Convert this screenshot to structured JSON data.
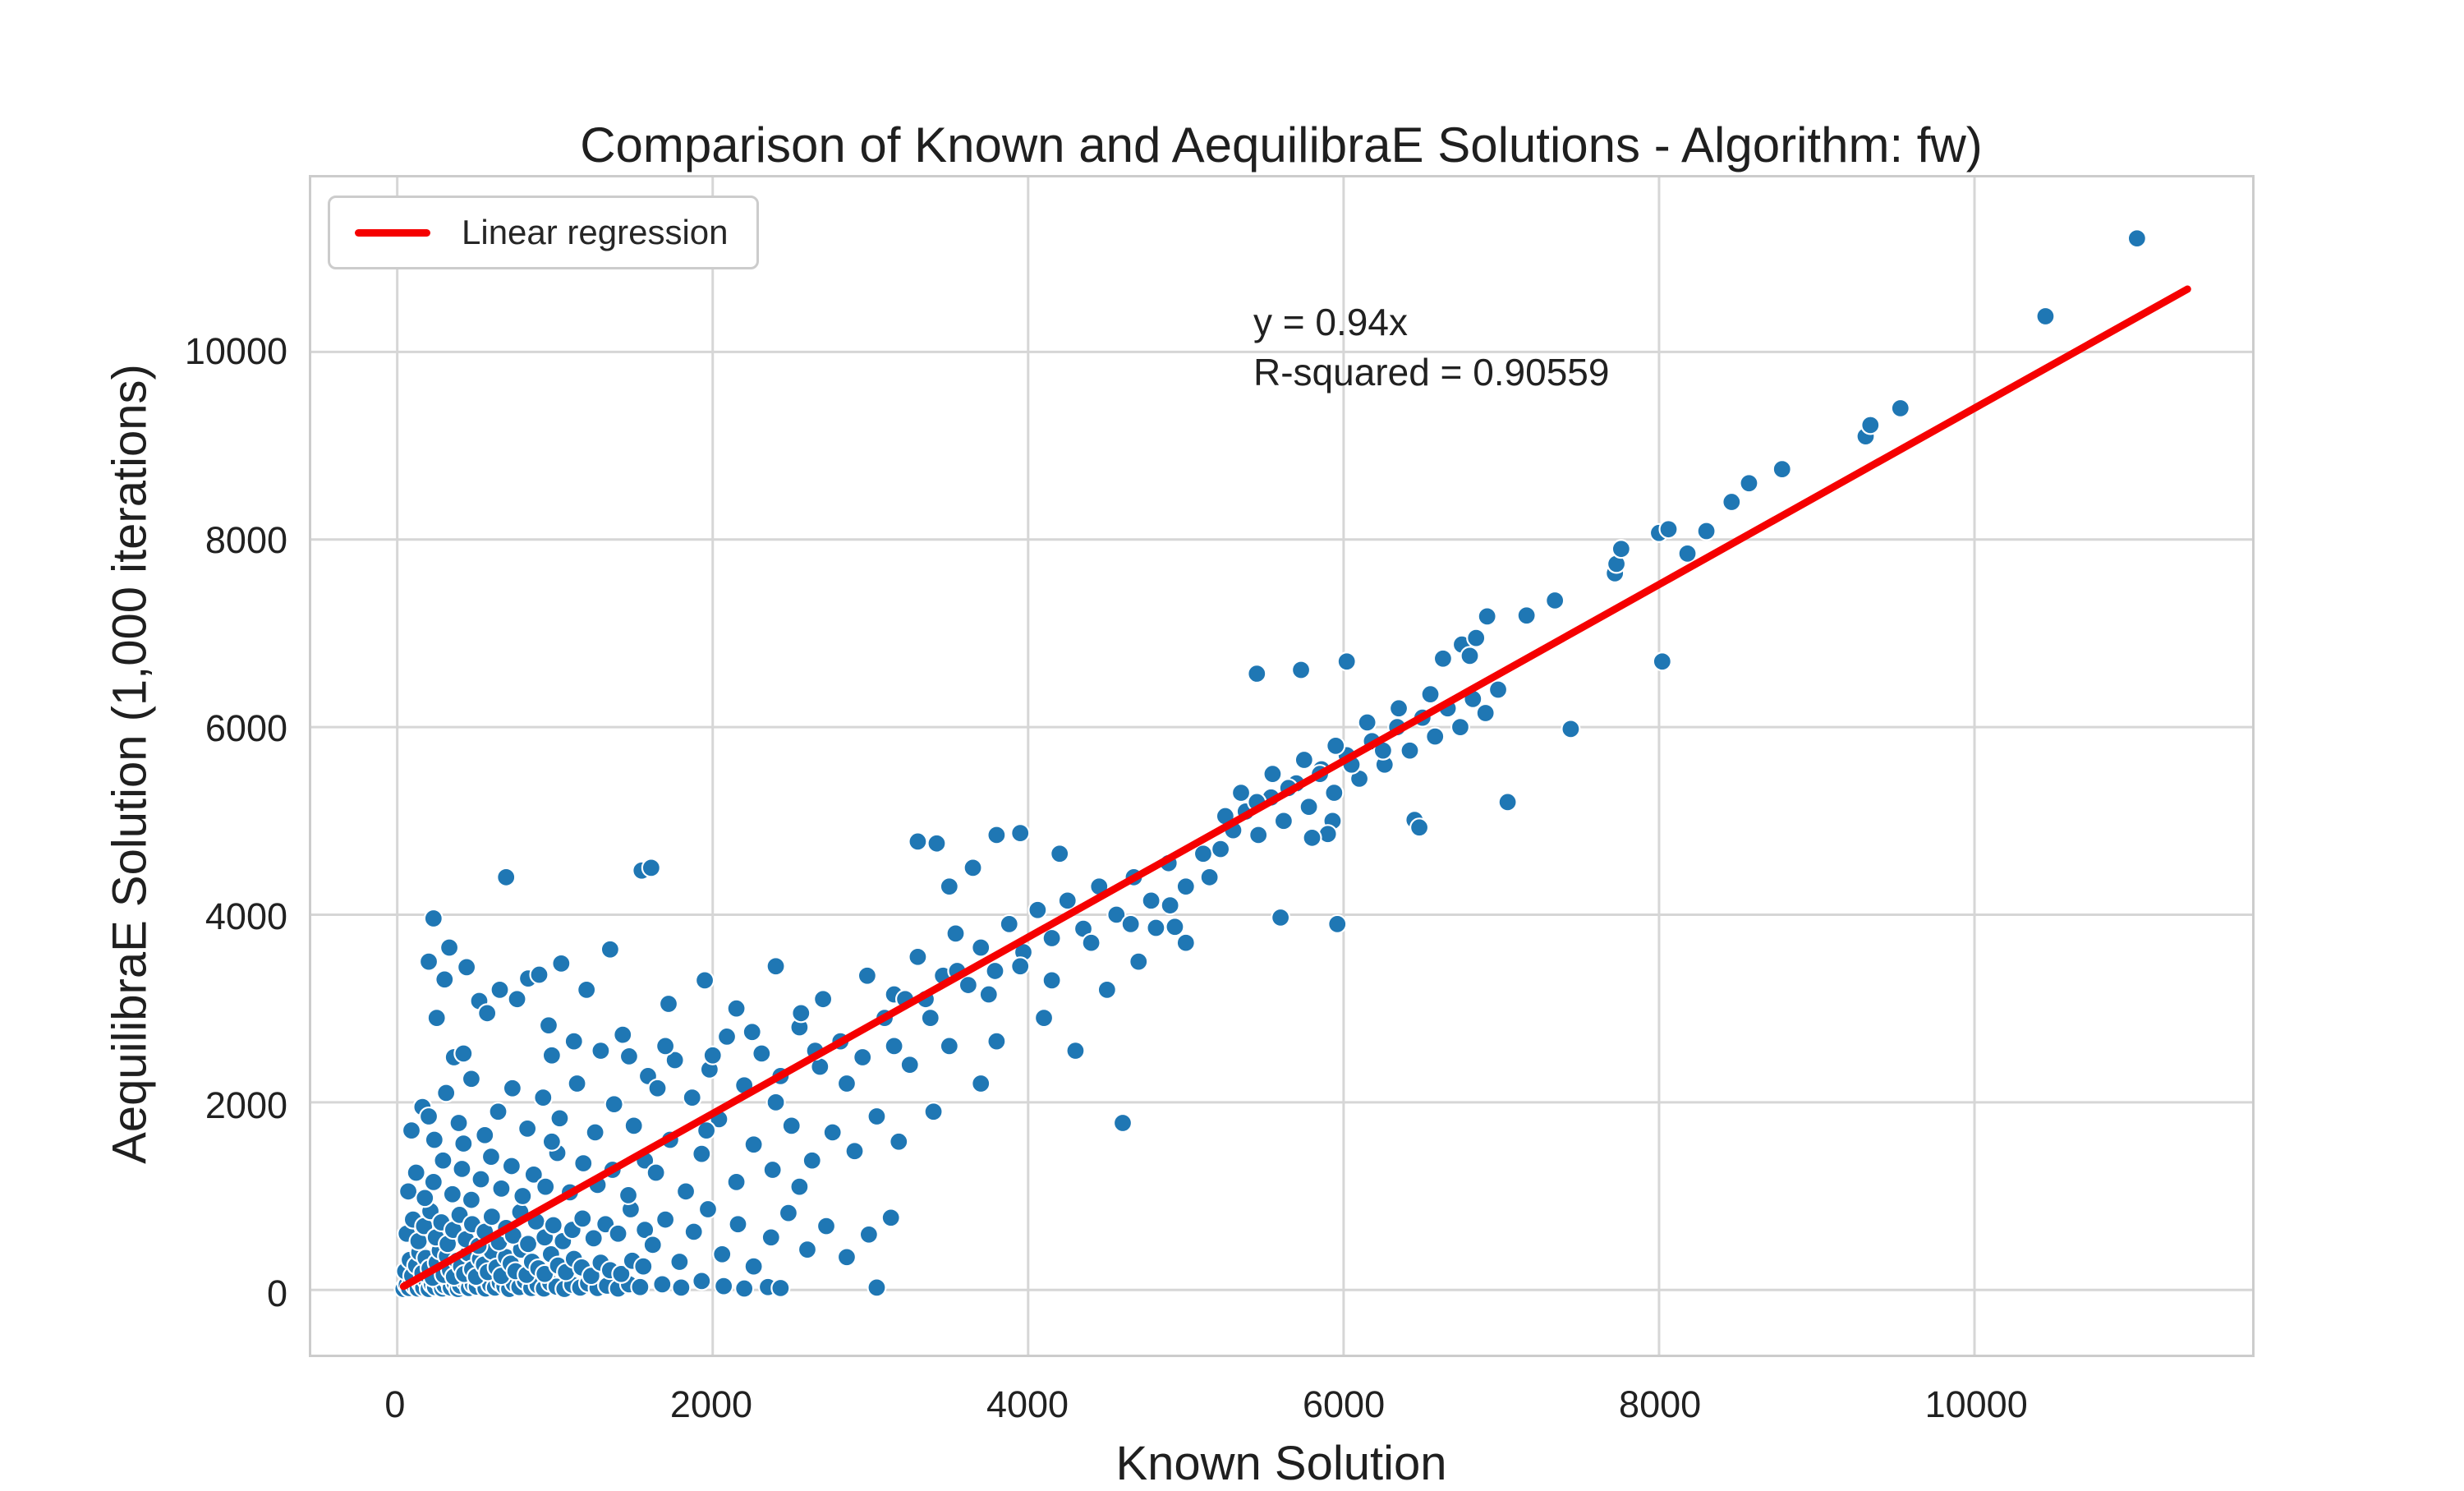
{
  "chart_data": {
    "type": "scatter",
    "title": "Comparison of Known and AequilibraE Solutions - Algorithm: fw)",
    "xlabel": "Known Solution",
    "ylabel": "AequilibraE Solution (1,000 iterations)",
    "xlim": [
      -545,
      11760
    ],
    "ylim": [
      -690,
      11860
    ],
    "x_ticks": [
      0,
      2000,
      4000,
      6000,
      8000,
      10000
    ],
    "y_ticks": [
      0,
      2000,
      4000,
      6000,
      8000,
      10000
    ],
    "grid": true,
    "grid_color": "#d6d6d6",
    "spine_color": "#cccccc",
    "point_color": "#1f77b4",
    "point_edge_color": "#ffffff",
    "regression_color": "#f50000",
    "legend": {
      "label": "Linear regression",
      "position": "upper left"
    },
    "annotation": {
      "line1": "y = 0.94x",
      "line2": "R-squared = 0.90559"
    },
    "regression": {
      "slope": 0.94,
      "intercept": 0,
      "x_start": 40,
      "x_end": 11350,
      "r_squared": 0.90559
    },
    "points": [
      [
        40,
        10
      ],
      [
        60,
        55
      ],
      [
        75,
        20
      ],
      [
        90,
        90
      ],
      [
        110,
        40
      ],
      [
        130,
        15
      ],
      [
        150,
        70
      ],
      [
        165,
        25
      ],
      [
        185,
        100
      ],
      [
        200,
        10
      ],
      [
        220,
        60
      ],
      [
        240,
        30
      ],
      [
        260,
        95
      ],
      [
        285,
        15
      ],
      [
        300,
        50
      ],
      [
        320,
        110
      ],
      [
        340,
        25
      ],
      [
        365,
        70
      ],
      [
        385,
        10
      ],
      [
        400,
        45
      ],
      [
        430,
        90
      ],
      [
        455,
        20
      ],
      [
        480,
        60
      ],
      [
        505,
        35
      ],
      [
        530,
        105
      ],
      [
        560,
        15
      ],
      [
        590,
        55
      ],
      [
        620,
        25
      ],
      [
        650,
        80
      ],
      [
        680,
        40
      ],
      [
        710,
        10
      ],
      [
        740,
        65
      ],
      [
        775,
        30
      ],
      [
        810,
        95
      ],
      [
        850,
        20
      ],
      [
        890,
        50
      ],
      [
        930,
        15
      ],
      [
        970,
        75
      ],
      [
        1010,
        35
      ],
      [
        1060,
        10
      ],
      [
        1110,
        55
      ],
      [
        1160,
        25
      ],
      [
        1210,
        70
      ],
      [
        1270,
        20
      ],
      [
        1330,
        45
      ],
      [
        1400,
        15
      ],
      [
        1470,
        60
      ],
      [
        1540,
        30
      ],
      [
        50,
        200
      ],
      [
        80,
        320
      ],
      [
        95,
        150
      ],
      [
        120,
        260
      ],
      [
        140,
        400
      ],
      [
        160,
        180
      ],
      [
        180,
        340
      ],
      [
        205,
        230
      ],
      [
        225,
        130
      ],
      [
        250,
        290
      ],
      [
        270,
        420
      ],
      [
        295,
        160
      ],
      [
        315,
        360
      ],
      [
        335,
        210
      ],
      [
        360,
        140
      ],
      [
        380,
        310
      ],
      [
        405,
        250
      ],
      [
        425,
        170
      ],
      [
        450,
        390
      ],
      [
        475,
        220
      ],
      [
        500,
        140
      ],
      [
        525,
        330
      ],
      [
        550,
        270
      ],
      [
        575,
        190
      ],
      [
        600,
        410
      ],
      [
        630,
        240
      ],
      [
        660,
        150
      ],
      [
        690,
        350
      ],
      [
        720,
        280
      ],
      [
        750,
        200
      ],
      [
        785,
        430
      ],
      [
        820,
        160
      ],
      [
        855,
        300
      ],
      [
        895,
        230
      ],
      [
        935,
        170
      ],
      [
        975,
        380
      ],
      [
        1020,
        260
      ],
      [
        1070,
        190
      ],
      [
        1120,
        330
      ],
      [
        1170,
        240
      ],
      [
        1230,
        150
      ],
      [
        1290,
        290
      ],
      [
        1350,
        210
      ],
      [
        1420,
        170
      ],
      [
        1490,
        310
      ],
      [
        1560,
        250
      ],
      [
        60,
        600
      ],
      [
        100,
        750
      ],
      [
        135,
        520
      ],
      [
        170,
        680
      ],
      [
        210,
        840
      ],
      [
        245,
        560
      ],
      [
        280,
        720
      ],
      [
        320,
        490
      ],
      [
        355,
        640
      ],
      [
        395,
        800
      ],
      [
        435,
        540
      ],
      [
        475,
        700
      ],
      [
        515,
        470
      ],
      [
        555,
        620
      ],
      [
        600,
        780
      ],
      [
        645,
        510
      ],
      [
        690,
        660
      ],
      [
        735,
        580
      ],
      [
        780,
        830
      ],
      [
        830,
        490
      ],
      [
        880,
        730
      ],
      [
        935,
        560
      ],
      [
        990,
        690
      ],
      [
        1050,
        520
      ],
      [
        1110,
        640
      ],
      [
        1175,
        760
      ],
      [
        1245,
        550
      ],
      [
        1320,
        700
      ],
      [
        1400,
        600
      ],
      [
        1480,
        860
      ],
      [
        1570,
        640
      ],
      [
        70,
        1050
      ],
      [
        120,
        1250
      ],
      [
        175,
        980
      ],
      [
        230,
        1150
      ],
      [
        290,
        1380
      ],
      [
        350,
        1020
      ],
      [
        410,
        1290
      ],
      [
        470,
        960
      ],
      [
        530,
        1180
      ],
      [
        595,
        1420
      ],
      [
        660,
        1080
      ],
      [
        725,
        1320
      ],
      [
        795,
        1000
      ],
      [
        865,
        1230
      ],
      [
        940,
        1100
      ],
      [
        1015,
        1460
      ],
      [
        1095,
        1040
      ],
      [
        1180,
        1350
      ],
      [
        1270,
        1120
      ],
      [
        1365,
        1280
      ],
      [
        1465,
        1010
      ],
      [
        1570,
        1380
      ],
      [
        90,
        1700
      ],
      [
        160,
        1950
      ],
      [
        235,
        1600
      ],
      [
        310,
        2100
      ],
      [
        390,
        1780
      ],
      [
        470,
        2250
      ],
      [
        555,
        1650
      ],
      [
        640,
        1900
      ],
      [
        730,
        2150
      ],
      [
        825,
        1720
      ],
      [
        925,
        2050
      ],
      [
        1030,
        1830
      ],
      [
        1140,
        2200
      ],
      [
        1255,
        1680
      ],
      [
        1375,
        1980
      ],
      [
        1500,
        1750
      ],
      [
        1590,
        2280
      ],
      [
        200,
        1850
      ],
      [
        420,
        1560
      ],
      [
        980,
        1580
      ],
      [
        1680,
        60
      ],
      [
        1800,
        25
      ],
      [
        1930,
        95
      ],
      [
        2070,
        40
      ],
      [
        2200,
        15
      ],
      [
        2350,
        30
      ],
      [
        2430,
        20
      ],
      [
        3040,
        25
      ],
      [
        1620,
        480
      ],
      [
        1700,
        750
      ],
      [
        1790,
        300
      ],
      [
        1880,
        620
      ],
      [
        1970,
        860
      ],
      [
        2060,
        380
      ],
      [
        2160,
        700
      ],
      [
        2260,
        250
      ],
      [
        2370,
        560
      ],
      [
        2480,
        820
      ],
      [
        2600,
        430
      ],
      [
        2720,
        680
      ],
      [
        2850,
        350
      ],
      [
        2990,
        590
      ],
      [
        3130,
        770
      ],
      [
        1640,
        1250
      ],
      [
        1730,
        1600
      ],
      [
        1830,
        1050
      ],
      [
        1930,
        1450
      ],
      [
        2040,
        1820
      ],
      [
        2150,
        1150
      ],
      [
        2260,
        1550
      ],
      [
        2380,
        1280
      ],
      [
        2500,
        1750
      ],
      [
        2630,
        1380
      ],
      [
        2760,
        1680
      ],
      [
        2900,
        1480
      ],
      [
        3040,
        1850
      ],
      [
        3180,
        1580
      ],
      [
        1960,
        1700
      ],
      [
        2550,
        1100
      ],
      [
        1650,
        2150
      ],
      [
        1760,
        2450
      ],
      [
        1870,
        2050
      ],
      [
        1980,
        2350
      ],
      [
        2090,
        2700
      ],
      [
        2200,
        2180
      ],
      [
        2310,
        2520
      ],
      [
        2430,
        2280
      ],
      [
        2550,
        2800
      ],
      [
        2680,
        2380
      ],
      [
        2810,
        2650
      ],
      [
        2950,
        2480
      ],
      [
        3090,
        2900
      ],
      [
        1700,
        2600
      ],
      [
        2250,
        2750
      ],
      [
        2850,
        2200
      ],
      [
        3150,
        2600
      ],
      [
        2400,
        2000
      ],
      [
        2000,
        2500
      ],
      [
        2650,
        2550
      ],
      [
        1720,
        3050
      ],
      [
        1950,
        3300
      ],
      [
        2150,
        3000
      ],
      [
        2400,
        3450
      ],
      [
        2700,
        3100
      ],
      [
        2980,
        3350
      ],
      [
        3150,
        3150
      ],
      [
        2560,
        2950
      ],
      [
        200,
        3500
      ],
      [
        230,
        3960
      ],
      [
        300,
        3310
      ],
      [
        330,
        3650
      ],
      [
        360,
        2480
      ],
      [
        420,
        2520
      ],
      [
        440,
        3440
      ],
      [
        520,
        3080
      ],
      [
        570,
        2950
      ],
      [
        650,
        3200
      ],
      [
        690,
        4400
      ],
      [
        760,
        3100
      ],
      [
        830,
        3320
      ],
      [
        900,
        3360
      ],
      [
        960,
        2820
      ],
      [
        1040,
        3480
      ],
      [
        1120,
        2650
      ],
      [
        1200,
        3200
      ],
      [
        1290,
        2550
      ],
      [
        1350,
        3630
      ],
      [
        1430,
        2720
      ],
      [
        1550,
        4470
      ],
      [
        1610,
        4500
      ],
      [
        980,
        2500
      ],
      [
        1470,
        2490
      ],
      [
        250,
        2900
      ],
      [
        3220,
        3100
      ],
      [
        3300,
        3550
      ],
      [
        3380,
        2900
      ],
      [
        3460,
        3350
      ],
      [
        3540,
        3800
      ],
      [
        3620,
        3250
      ],
      [
        3700,
        3650
      ],
      [
        3790,
        3400
      ],
      [
        3880,
        3900
      ],
      [
        3970,
        3600
      ],
      [
        4060,
        4050
      ],
      [
        4150,
        3750
      ],
      [
        4250,
        4150
      ],
      [
        4350,
        3850
      ],
      [
        4450,
        4300
      ],
      [
        4560,
        4000
      ],
      [
        4670,
        4400
      ],
      [
        4780,
        4150
      ],
      [
        4890,
        4550
      ],
      [
        5000,
        4300
      ],
      [
        5110,
        4650
      ],
      [
        3350,
        3100
      ],
      [
        3550,
        3400
      ],
      [
        3750,
        3150
      ],
      [
        3950,
        3450
      ],
      [
        4150,
        3300
      ],
      [
        4400,
        3700
      ],
      [
        4650,
        3900
      ],
      [
        4900,
        4100
      ],
      [
        5150,
        4400
      ],
      [
        3300,
        4780
      ],
      [
        3420,
        4760
      ],
      [
        3800,
        4850
      ],
      [
        3950,
        4870
      ],
      [
        3650,
        4500
      ],
      [
        4200,
        4650
      ],
      [
        3500,
        4300
      ],
      [
        3250,
        2400
      ],
      [
        3500,
        2600
      ],
      [
        3800,
        2650
      ],
      [
        4100,
        2900
      ],
      [
        4600,
        1780
      ],
      [
        4300,
        2550
      ],
      [
        3400,
        1900
      ],
      [
        3700,
        2200
      ],
      [
        4810,
        3860
      ],
      [
        4930,
        3870
      ],
      [
        5000,
        3700
      ],
      [
        4500,
        3200
      ],
      [
        4700,
        3500
      ],
      [
        5220,
        4700
      ],
      [
        5300,
        4900
      ],
      [
        5380,
        5100
      ],
      [
        5460,
        4850
      ],
      [
        5540,
        5250
      ],
      [
        5620,
        5000
      ],
      [
        5700,
        5400
      ],
      [
        5780,
        5150
      ],
      [
        5860,
        5550
      ],
      [
        5940,
        5300
      ],
      [
        6020,
        5700
      ],
      [
        6100,
        5450
      ],
      [
        6180,
        5850
      ],
      [
        6260,
        5600
      ],
      [
        6340,
        6000
      ],
      [
        6420,
        5750
      ],
      [
        6500,
        6100
      ],
      [
        6580,
        5900
      ],
      [
        6660,
        6200
      ],
      [
        6740,
        6000
      ],
      [
        6820,
        6300
      ],
      [
        6900,
        6150
      ],
      [
        6980,
        6400
      ],
      [
        5350,
        5300
      ],
      [
        5550,
        5500
      ],
      [
        5750,
        5650
      ],
      [
        5950,
        5800
      ],
      [
        6150,
        6050
      ],
      [
        6350,
        6200
      ],
      [
        6550,
        6350
      ],
      [
        5250,
        5050
      ],
      [
        5450,
        5200
      ],
      [
        5650,
        5350
      ],
      [
        5850,
        5500
      ],
      [
        6050,
        5600
      ],
      [
        6250,
        5750
      ],
      [
        5450,
        6570
      ],
      [
        5730,
        6610
      ],
      [
        6020,
        6700
      ],
      [
        5600,
        3970
      ],
      [
        5960,
        3900
      ],
      [
        5930,
        5000
      ],
      [
        5900,
        4860
      ],
      [
        5800,
        4820
      ],
      [
        6450,
        5010
      ],
      [
        6480,
        4930
      ],
      [
        7040,
        5200
      ],
      [
        6630,
        6730
      ],
      [
        6750,
        6880
      ],
      [
        6800,
        6760
      ],
      [
        6840,
        6950
      ],
      [
        6910,
        7180
      ],
      [
        7160,
        7190
      ],
      [
        7340,
        7350
      ],
      [
        7440,
        5980
      ],
      [
        7720,
        7640
      ],
      [
        7730,
        7740
      ],
      [
        7760,
        7900
      ],
      [
        8000,
        8070
      ],
      [
        8060,
        8110
      ],
      [
        8300,
        8090
      ],
      [
        8020,
        6700
      ],
      [
        8180,
        7850
      ],
      [
        8460,
        8400
      ],
      [
        8570,
        8600
      ],
      [
        8780,
        8750
      ],
      [
        9310,
        9100
      ],
      [
        9340,
        9220
      ],
      [
        9530,
        9400
      ],
      [
        10450,
        10380
      ],
      [
        11030,
        11210
      ]
    ]
  }
}
